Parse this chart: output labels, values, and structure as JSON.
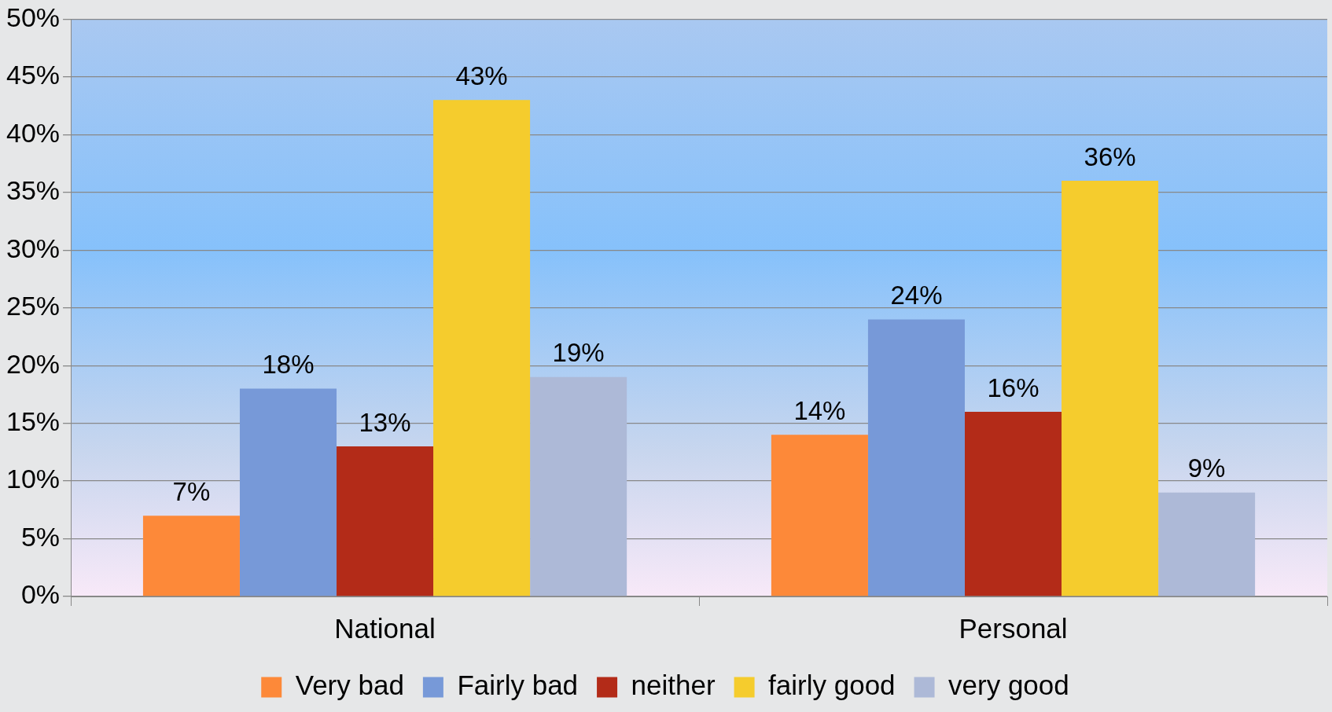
{
  "chart_data": {
    "type": "bar",
    "categories": [
      "National",
      "Personal"
    ],
    "series": [
      {
        "name": "Very bad",
        "color": "#fd8939",
        "values": [
          7,
          14
        ],
        "value_labels": [
          "7%",
          "14%"
        ]
      },
      {
        "name": "Fairly bad",
        "color": "#7799d8",
        "values": [
          18,
          24
        ],
        "value_labels": [
          "18%",
          "24%"
        ]
      },
      {
        "name": "neither",
        "color": "#b32b18",
        "values": [
          13,
          16
        ],
        "value_labels": [
          "13%",
          "16%"
        ]
      },
      {
        "name": "fairly good",
        "color": "#f5cc2d",
        "values": [
          43,
          36
        ],
        "value_labels": [
          "43%",
          "36%"
        ]
      },
      {
        "name": "very good",
        "color": "#adb9d7",
        "values": [
          19,
          9
        ],
        "value_labels": [
          "19%",
          "9%"
        ]
      }
    ],
    "ylim": [
      0,
      50
    ],
    "yticks": [
      {
        "value": 0,
        "label": "0%"
      },
      {
        "value": 5,
        "label": "5%"
      },
      {
        "value": 10,
        "label": "10%"
      },
      {
        "value": 15,
        "label": "15%"
      },
      {
        "value": 20,
        "label": "20%"
      },
      {
        "value": 25,
        "label": "25%"
      },
      {
        "value": 30,
        "label": "30%"
      },
      {
        "value": 35,
        "label": "35%"
      },
      {
        "value": 40,
        "label": "40%"
      },
      {
        "value": 45,
        "label": "45%"
      },
      {
        "value": 50,
        "label": "50%"
      }
    ],
    "grid": "y",
    "legend": "bottom"
  }
}
